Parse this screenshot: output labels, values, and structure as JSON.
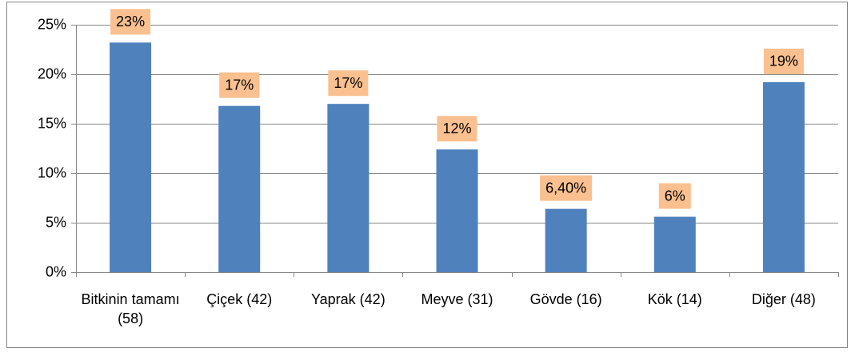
{
  "chart_data": {
    "type": "bar",
    "categories": [
      "Bitkinin tamamı (58)",
      "Çiçek (42)",
      "Yaprak (42)",
      "Meyve (31)",
      "Gövde (16)",
      "Kök (14)",
      "Diğer (48)"
    ],
    "values": [
      23.2,
      16.8,
      17.0,
      12.4,
      6.4,
      5.6,
      19.2
    ],
    "value_labels": [
      "23%",
      "17%",
      "17%",
      "12%",
      "6,40%",
      "6%",
      "19%"
    ],
    "color": "#4f81bd",
    "label_color": "#fac090",
    "ylim": [
      0,
      25
    ],
    "yticks": [
      {
        "value": 0,
        "label": "0%"
      },
      {
        "value": 5,
        "label": "5%"
      },
      {
        "value": 10,
        "label": "10%"
      },
      {
        "value": 15,
        "label": "15%"
      },
      {
        "value": 20,
        "label": "20%"
      },
      {
        "value": 25,
        "label": "25%"
      }
    ],
    "grid": true
  }
}
